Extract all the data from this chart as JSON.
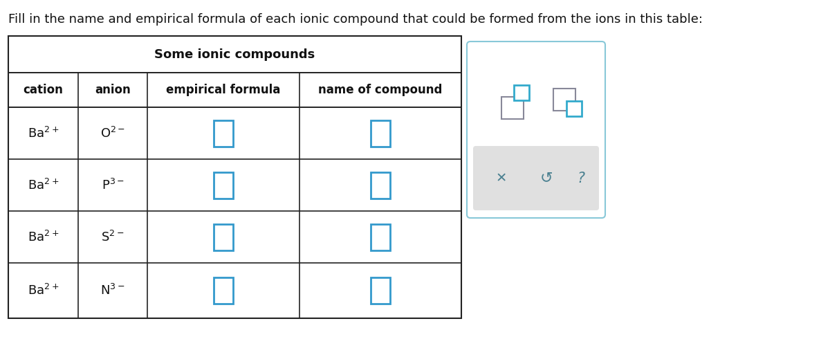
{
  "title_text": "Fill in the name and empirical formula of each ionic compound that could be formed from the ions in this table:",
  "table_title": "Some ionic compounds",
  "headers": [
    "cation",
    "anion",
    "empirical formula",
    "name of compound"
  ],
  "cations": [
    "Ba",
    "Ba",
    "Ba",
    "Ba"
  ],
  "anions": [
    "O",
    "P",
    "S",
    "N"
  ],
  "cation_charges": [
    "2+",
    "2+",
    "2+",
    "2+"
  ],
  "anion_charges": [
    "2−",
    "3−",
    "2−",
    "3−"
  ],
  "bg_color": "#ffffff",
  "table_line_color": "#222222",
  "header_text_color": "#111111",
  "input_box_color": "#3399cc",
  "panel_border_color": "#88c8d8",
  "panel_bg_color": "#ffffff",
  "panel_footer_color": "#e0e0e0",
  "icon_color": "#4a8090",
  "sq_big_color": "#888899",
  "sq_small_color": "#33aacc",
  "title_fontsize": 13,
  "table_title_fontsize": 13,
  "header_fontsize": 12,
  "cell_fontsize": 12
}
